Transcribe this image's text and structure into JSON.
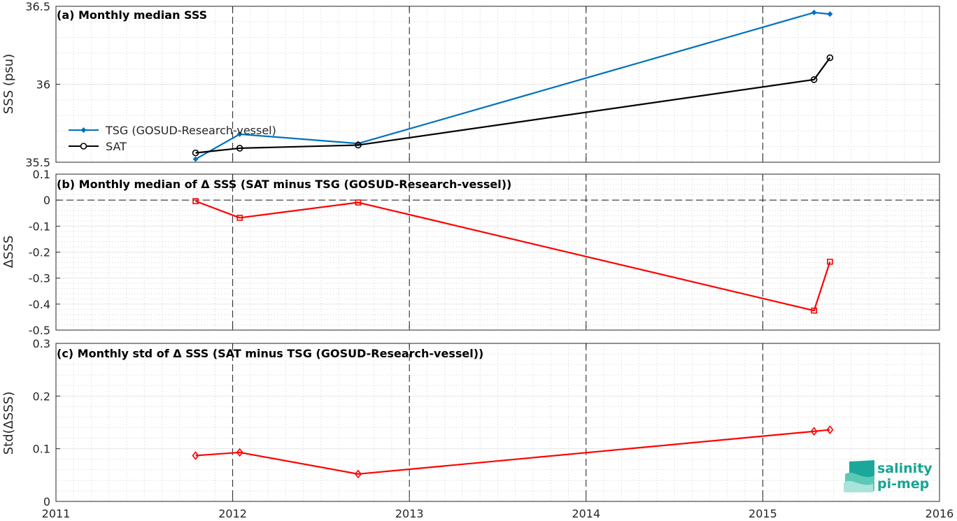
{
  "x_tick_labels": [
    "2011",
    "2012",
    "2013",
    "2014",
    "2015",
    "2016"
  ],
  "logo": {
    "line1": "salinity",
    "line2": "pi-mep"
  },
  "colors": {
    "tsg": "#0072BD",
    "sat": "#000000",
    "delta": "#FF0000"
  },
  "chart_data": [
    {
      "type": "line",
      "panel": "a",
      "title": "(a) Monthly median SSS",
      "ylabel": "SSS (psu)",
      "xlabel": "",
      "xlim": [
        2011,
        2016
      ],
      "ylim": [
        35.5,
        36.5
      ],
      "ytick_labels": [
        "35.5",
        "36",
        "36.5"
      ],
      "grid": true,
      "legend_position": "middle-left",
      "series": [
        {
          "name": "TSG (GOSUD-Research-vessel)",
          "color": "#0072BD",
          "marker": "filled-diamond",
          "x": [
            2011.79,
            2012.04,
            2012.71,
            2015.29,
            2015.38
          ],
          "y": [
            35.52,
            35.68,
            35.62,
            36.46,
            36.45
          ]
        },
        {
          "name": "SAT",
          "color": "#000000",
          "marker": "circle",
          "x": [
            2011.79,
            2012.04,
            2012.71,
            2015.29,
            2015.38
          ],
          "y": [
            35.56,
            35.59,
            35.61,
            36.03,
            36.17
          ]
        }
      ]
    },
    {
      "type": "line",
      "panel": "b",
      "title": "(b) Monthly median of Δ SSS (SAT minus TSG (GOSUD-Research-vessel))",
      "ylabel": "ΔSSS",
      "xlabel": "",
      "xlim": [
        2011,
        2016
      ],
      "ylim": [
        -0.5,
        0.1
      ],
      "ytick_labels": [
        "-0.5",
        "-0.4",
        "-0.3",
        "-0.2",
        "-0.1",
        "0",
        "0.1"
      ],
      "grid": true,
      "reference_line_y": 0,
      "series": [
        {
          "color": "#FF0000",
          "marker": "square",
          "x": [
            2011.79,
            2012.04,
            2012.71,
            2015.29,
            2015.38
          ],
          "y": [
            -0.004,
            -0.068,
            -0.009,
            -0.425,
            -0.237
          ]
        }
      ]
    },
    {
      "type": "line",
      "panel": "c",
      "title": "(c) Monthly std of Δ SSS (SAT minus TSG (GOSUD-Research-vessel))",
      "ylabel": "Std(ΔSSS)",
      "xlabel": "",
      "xlim": [
        2011,
        2016
      ],
      "ylim": [
        0,
        0.3
      ],
      "ytick_labels": [
        "0",
        "0.1",
        "0.2",
        "0.3"
      ],
      "grid": true,
      "series": [
        {
          "color": "#FF0000",
          "marker": "diamond",
          "x": [
            2011.79,
            2012.04,
            2012.71,
            2015.29,
            2015.38
          ],
          "y": [
            0.087,
            0.093,
            0.052,
            0.133,
            0.136
          ]
        }
      ]
    }
  ]
}
